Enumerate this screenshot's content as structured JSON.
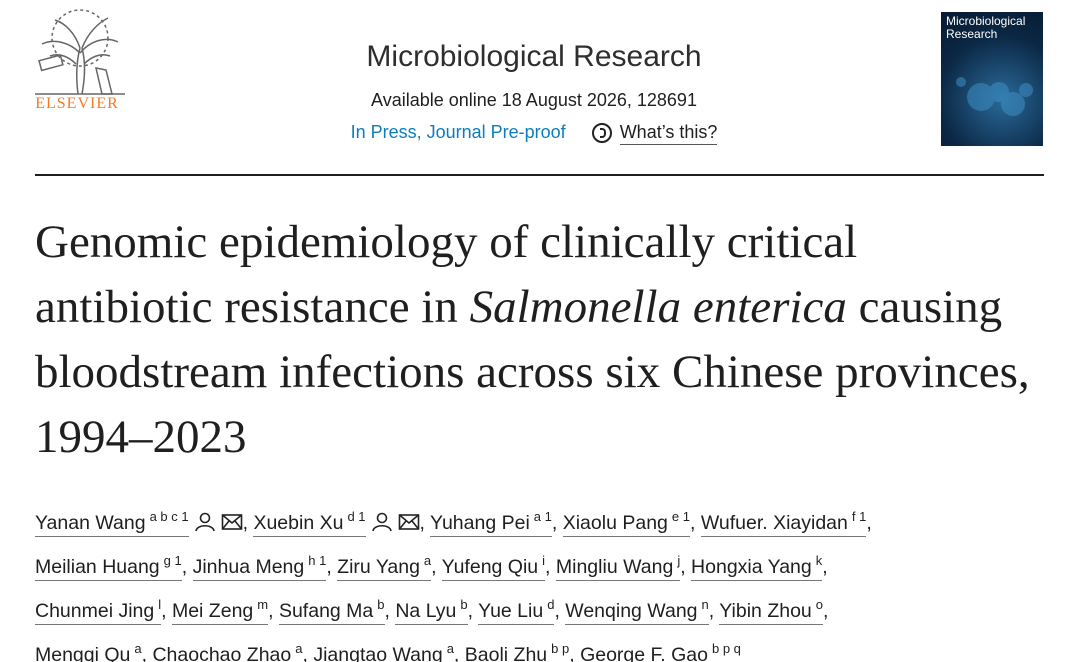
{
  "header": {
    "publisher": "ELSEVIER",
    "journal": "Microbiological Research",
    "availability": "Available online 18 August 2026, 128691",
    "status": "In Press, Journal Pre-proof",
    "help": "What’s this?",
    "cover_title": "Microbiological Research"
  },
  "article": {
    "title_parts": [
      {
        "text": "Genomic epidemiology of clinically critical antibiotic resistance in ",
        "italic": false
      },
      {
        "text": "Salmonella enterica",
        "italic": true
      },
      {
        "text": " causing bloodstream infections across six Chinese provinces, 1994–2023",
        "italic": false
      }
    ],
    "author_separator": ",",
    "authors": [
      {
        "name": "Yanan Wang",
        "affiliations": "a b c 1",
        "corresponding": true
      },
      {
        "name": "Xuebin Xu",
        "affiliations": "d 1",
        "corresponding": true
      },
      {
        "name": "Yuhang Pei",
        "affiliations": "a 1",
        "corresponding": false
      },
      {
        "name": "Xiaolu Pang",
        "affiliations": "e 1",
        "corresponding": false
      },
      {
        "name": "Wufuer. Xiayidan",
        "affiliations": "f 1",
        "corresponding": false
      },
      {
        "name": "Meilian Huang",
        "affiliations": "g 1",
        "corresponding": false
      },
      {
        "name": "Jinhua Meng",
        "affiliations": "h 1",
        "corresponding": false
      },
      {
        "name": "Ziru Yang",
        "affiliations": "a",
        "corresponding": false
      },
      {
        "name": "Yufeng Qiu",
        "affiliations": "i",
        "corresponding": false
      },
      {
        "name": "Mingliu Wang",
        "affiliations": "j",
        "corresponding": false
      },
      {
        "name": "Hongxia Yang",
        "affiliations": "k",
        "corresponding": false
      },
      {
        "name": "Chunmei Jing",
        "affiliations": "l",
        "corresponding": false
      },
      {
        "name": "Mei Zeng",
        "affiliations": "m",
        "corresponding": false
      },
      {
        "name": "Sufang Ma",
        "affiliations": "b",
        "corresponding": false
      },
      {
        "name": "Na Lyu",
        "affiliations": "b",
        "corresponding": false
      },
      {
        "name": "Yue Liu",
        "affiliations": "d",
        "corresponding": false
      },
      {
        "name": "Wenqing Wang",
        "affiliations": "n",
        "corresponding": false
      },
      {
        "name": "Yibin Zhou",
        "affiliations": "o",
        "corresponding": false
      },
      {
        "name": "Mengqi Qu",
        "affiliations": "a",
        "corresponding": false
      },
      {
        "name": "Chaochao Zhao",
        "affiliations": "a",
        "corresponding": false
      },
      {
        "name": "Jiangtao Wang",
        "affiliations": "a",
        "corresponding": false
      },
      {
        "name": "Baoli Zhu",
        "affiliations": "b p",
        "corresponding": false
      },
      {
        "name": "George F. Gao",
        "affiliations": "b p q",
        "corresponding": false
      }
    ]
  }
}
